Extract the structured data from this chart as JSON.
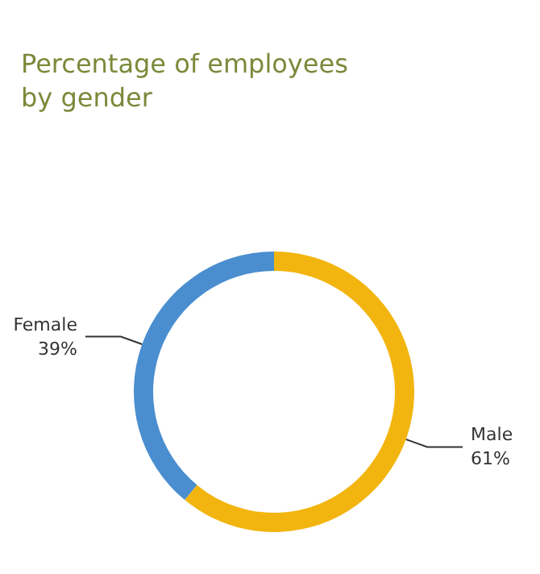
{
  "chart_data": {
    "type": "donut",
    "title": "Percentage of employees\nby gender",
    "categories": [
      "Male",
      "Female"
    ],
    "values": [
      61,
      39
    ],
    "value_labels": [
      "61%",
      "39%"
    ],
    "colors": [
      "#f2b50f",
      "#4a8ed0"
    ],
    "legend": false
  }
}
